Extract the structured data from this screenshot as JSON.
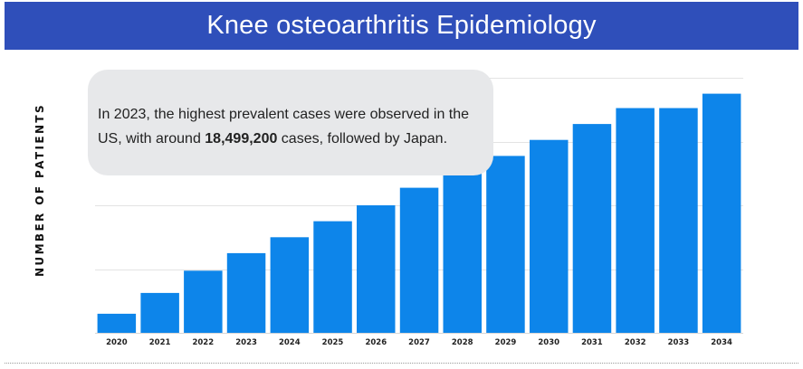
{
  "header": {
    "title": "Knee osteoarthritis Epidemiology"
  },
  "callout": {
    "text_before": "In 2023, the highest prevalent cases were observed in the US, with around ",
    "highlight": "18,499,200",
    "text_after": " cases, followed by Japan."
  },
  "colors": {
    "header_bg": "#2f4fba",
    "bar": "#0d85ea",
    "callout_bg": "#e7e8ea",
    "grid": "#e3e3e3"
  },
  "chart_data": {
    "type": "bar",
    "title": "",
    "xlabel": "",
    "ylabel": "NUMBER OF PATIENTS",
    "grid": true,
    "categories": [
      "2020",
      "2021",
      "2022",
      "2023",
      "2024",
      "2025",
      "2026",
      "2027",
      "2028",
      "2029",
      "2030",
      "2031",
      "2032",
      "2033",
      "2034"
    ],
    "values": [
      0.6,
      1.25,
      1.95,
      2.5,
      3.0,
      3.5,
      4.0,
      4.55,
      5.05,
      5.55,
      6.05,
      6.55,
      7.05,
      7.05,
      7.5
    ],
    "ylim": [
      0,
      8
    ],
    "yticks_labeled": false
  }
}
